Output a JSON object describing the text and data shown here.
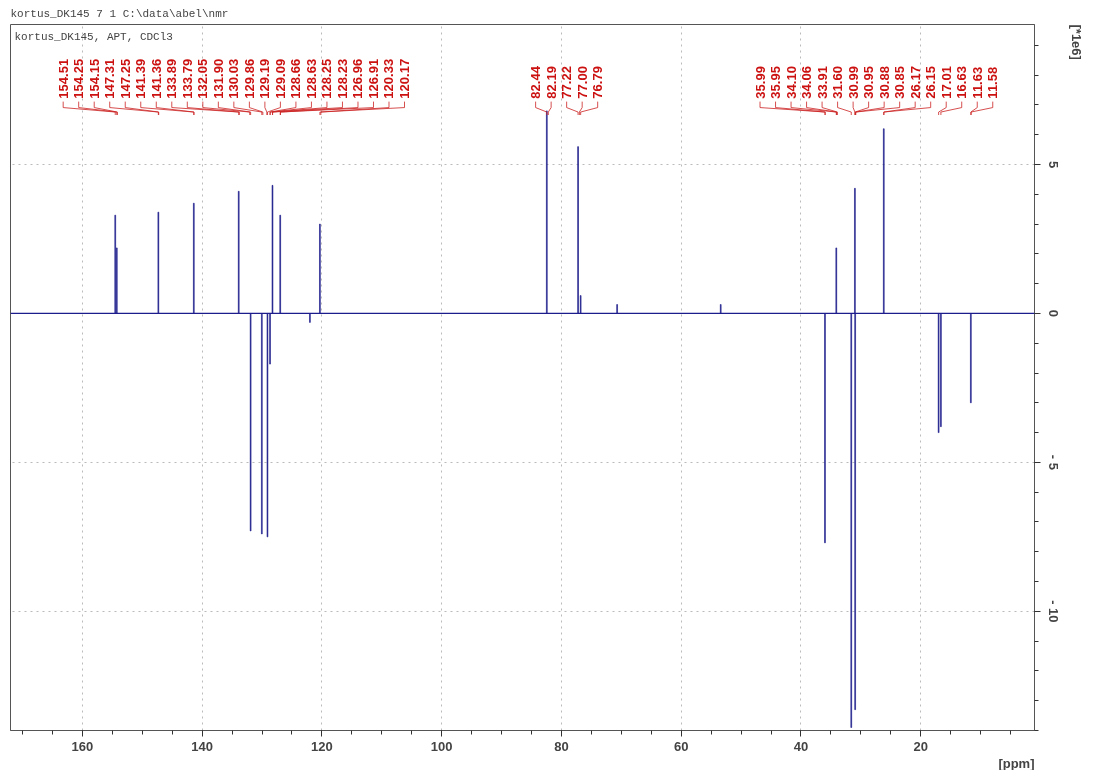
{
  "chart_data": {
    "type": "bar",
    "title": "kortus_DK145   7  1  C:\\data\\abel\\nmr",
    "subtitle": "kortus_DK145, APT, CDCl3",
    "xlabel": "[ppm]",
    "ylabel": "[*1e6]",
    "xlim": [
      172,
      1
    ],
    "ylim": [
      -14,
      9.7
    ],
    "xticks": [
      160,
      140,
      120,
      100,
      80,
      60,
      40,
      20
    ],
    "yticks": [
      {
        "value": -10,
        "label": "- 10"
      },
      {
        "value": -5,
        "label": "- 5"
      },
      0,
      5
    ],
    "grid": true,
    "x": [
      154.51,
      154.25,
      147.31,
      141.39,
      133.89,
      131.9,
      130.03,
      129.09,
      128.66,
      128.25,
      126.96,
      122.0,
      120.33,
      82.44,
      77.22,
      76.79,
      70.7,
      53.4,
      35.99,
      34.1,
      31.6,
      30.99,
      30.95,
      26.17,
      17.01,
      16.63,
      11.63
    ],
    "series": [
      {
        "color": "#1c1c8c",
        "values": [
          3.3,
          2.2,
          3.4,
          3.7,
          4.1,
          -7.3,
          -7.4,
          -7.5,
          -1.7,
          4.3,
          3.3,
          -0.3,
          3.0,
          6.8,
          5.6,
          0.6,
          0.3,
          0.3,
          -7.7,
          2.2,
          -13.9,
          4.2,
          -13.3,
          6.2,
          -4.0,
          -3.8,
          -3.0
        ]
      }
    ],
    "ref_lines": [
      {
        "axis": "y",
        "value": 0,
        "color": "#1c1c8c"
      }
    ],
    "annotations": [
      {
        "text": "154.51",
        "x": 154.51
      },
      {
        "text": "154.25",
        "x": 154.25
      },
      {
        "text": "154.15",
        "x": 154.15
      },
      {
        "text": "147.31",
        "x": 147.31
      },
      {
        "text": "147.25",
        "x": 147.25
      },
      {
        "text": "141.39",
        "x": 141.39
      },
      {
        "text": "141.36",
        "x": 141.36
      },
      {
        "text": "133.89",
        "x": 133.89
      },
      {
        "text": "133.79",
        "x": 133.79
      },
      {
        "text": "132.05",
        "x": 132.05
      },
      {
        "text": "131.90",
        "x": 131.9
      },
      {
        "text": "130.03",
        "x": 130.03
      },
      {
        "text": "129.86",
        "x": 129.86
      },
      {
        "text": "129.19",
        "x": 129.19
      },
      {
        "text": "129.09",
        "x": 129.09
      },
      {
        "text": "128.66",
        "x": 128.66
      },
      {
        "text": "128.63",
        "x": 128.63
      },
      {
        "text": "128.25",
        "x": 128.25
      },
      {
        "text": "128.23",
        "x": 128.23
      },
      {
        "text": "126.96",
        "x": 126.96
      },
      {
        "text": "126.91",
        "x": 126.91
      },
      {
        "text": "120.33",
        "x": 120.33
      },
      {
        "text": "120.17",
        "x": 120.17
      },
      {
        "text": "82.44",
        "x": 82.44
      },
      {
        "text": "82.19",
        "x": 82.19
      },
      {
        "text": "77.22",
        "x": 77.22
      },
      {
        "text": "77.00",
        "x": 77.0
      },
      {
        "text": "76.79",
        "x": 76.79
      },
      {
        "text": "35.99",
        "x": 35.99
      },
      {
        "text": "35.95",
        "x": 35.95
      },
      {
        "text": "34.10",
        "x": 34.1
      },
      {
        "text": "34.06",
        "x": 34.06
      },
      {
        "text": "33.91",
        "x": 33.91
      },
      {
        "text": "31.60",
        "x": 31.6
      },
      {
        "text": "30.99",
        "x": 30.99
      },
      {
        "text": "30.95",
        "x": 30.95
      },
      {
        "text": "30.88",
        "x": 30.88
      },
      {
        "text": "30.85",
        "x": 30.85
      },
      {
        "text": "26.17",
        "x": 26.17
      },
      {
        "text": "26.15",
        "x": 26.15
      },
      {
        "text": "17.01",
        "x": 17.01
      },
      {
        "text": "16.63",
        "x": 16.63
      },
      {
        "text": "11.63",
        "x": 11.63
      },
      {
        "text": "11.58",
        "x": 11.58
      }
    ]
  }
}
